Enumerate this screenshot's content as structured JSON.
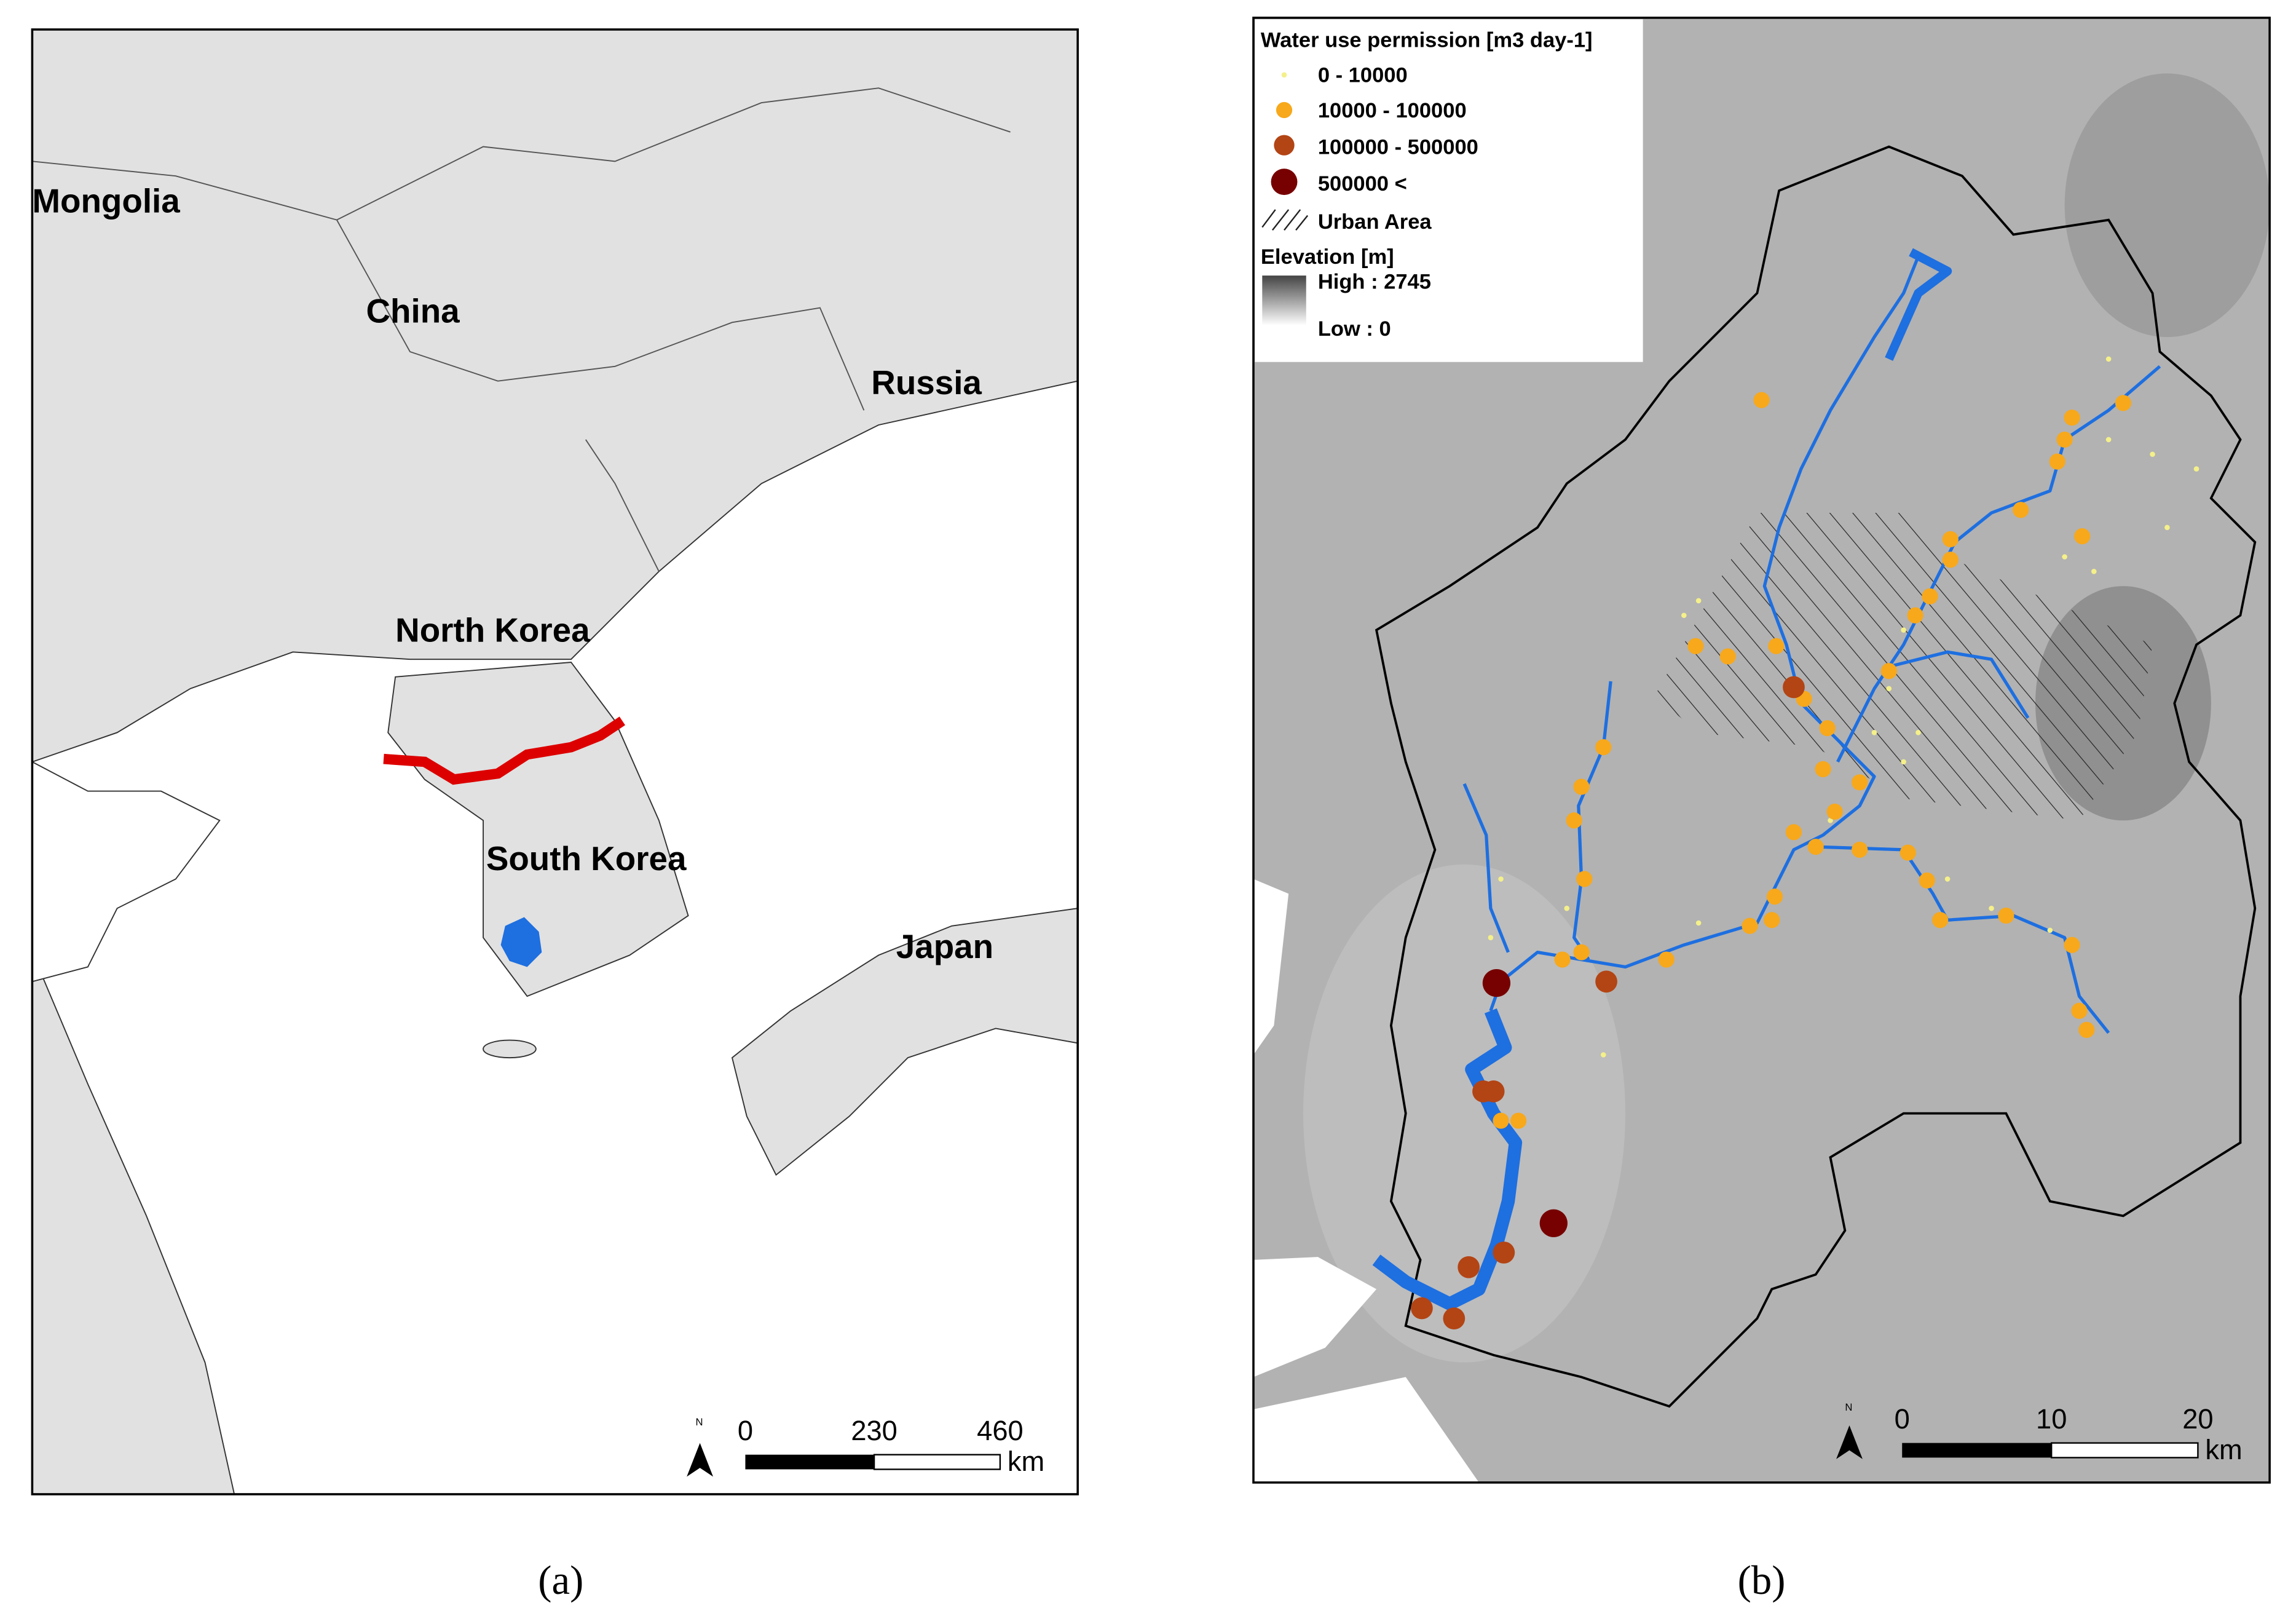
{
  "panel_a": {
    "country_labels": [
      "Mongolia",
      "China",
      "Russia",
      "North Korea",
      "South Korea",
      "Japan"
    ],
    "north_label": "N",
    "scale_bar": {
      "ticks": [
        "0",
        "230",
        "460"
      ],
      "unit": "km"
    },
    "caption": "(a)"
  },
  "panel_b": {
    "legend": {
      "title": "Water use permission [m3 day-1]",
      "classes": [
        "0 - 10000",
        "10000 - 100000",
        "100000 - 500000",
        "500000 <"
      ],
      "urban": "Urban Area",
      "elevation_title": "Elevation [m]",
      "high": "High : 2745",
      "low": "Low : 0"
    },
    "north_label": "N",
    "scale_bar": {
      "ticks": [
        "0",
        "10",
        "20"
      ],
      "unit": "km"
    },
    "caption": "(b)"
  }
}
